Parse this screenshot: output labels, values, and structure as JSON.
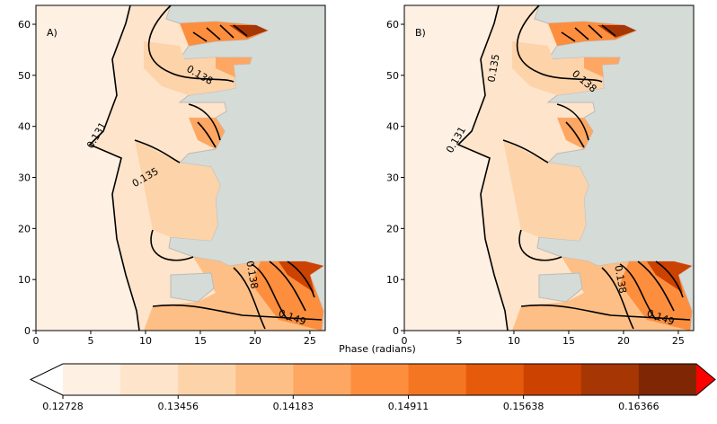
{
  "chart_data": {
    "type": "contour",
    "xlim": [
      0,
      26.4
    ],
    "ylim": [
      0,
      63.7
    ],
    "xticks": [
      0,
      5,
      10,
      15,
      20,
      25
    ],
    "yticks": [
      0,
      10,
      20,
      30,
      40,
      50,
      60
    ],
    "panels": [
      {
        "label": "A)",
        "contour_labels": [
          0.131,
          0.135,
          0.138,
          0.138,
          0.149
        ]
      },
      {
        "label": "B)",
        "contour_labels": [
          0.135,
          0.131,
          0.138,
          0.138,
          0.149
        ]
      }
    ],
    "colorbar": {
      "label": "Phase (radians)",
      "clim": [
        0.12728,
        0.1673
      ],
      "ticks": [
        0.12728,
        0.13456,
        0.14183,
        0.14911,
        0.15638,
        0.16366
      ],
      "colors": [
        "#fef0e2",
        "#fde4ca",
        "#fdd3a9",
        "#fdbf86",
        "#fda762",
        "#fd8e3e",
        "#f57622",
        "#e65a0b",
        "#cc4301",
        "#a63603",
        "#7f2704"
      ],
      "under_color": "#ffffff",
      "over_color": "#ff0000"
    }
  }
}
